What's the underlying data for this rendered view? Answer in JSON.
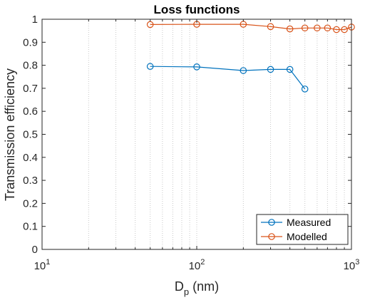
{
  "chart_data": {
    "type": "line",
    "title": "Loss functions",
    "xlabel_main": "D",
    "xlabel_sub": "p",
    "xlabel_unit": " (nm)",
    "ylabel": "Transmission efficiency",
    "xscale": "log",
    "xlim": [
      10,
      1000
    ],
    "ylim": [
      0,
      1
    ],
    "grid": "x-major-and-minor",
    "legend_position": "bottom-right",
    "x_ticks": [
      {
        "base": "10",
        "exp": "1",
        "value": 10
      },
      {
        "base": "10",
        "exp": "2",
        "value": 100
      },
      {
        "base": "10",
        "exp": "3",
        "value": 1000
      }
    ],
    "y_ticks": [
      "0",
      "0.1",
      "0.2",
      "0.3",
      "0.4",
      "0.5",
      "0.6",
      "0.7",
      "0.8",
      "0.9",
      "1"
    ],
    "series": [
      {
        "name": "Measured",
        "color": "#0072bd",
        "marker": "circle",
        "x": [
          50,
          100,
          200,
          300,
          400,
          500
        ],
        "y": [
          0.795,
          0.793,
          0.777,
          0.782,
          0.782,
          0.697
        ]
      },
      {
        "name": "Modelled",
        "color": "#d95319",
        "marker": "circle",
        "x": [
          50,
          100,
          200,
          300,
          400,
          500,
          600,
          700,
          800,
          900,
          1000
        ],
        "y": [
          0.977,
          0.978,
          0.978,
          0.968,
          0.958,
          0.962,
          0.962,
          0.962,
          0.955,
          0.955,
          0.966
        ]
      }
    ]
  }
}
